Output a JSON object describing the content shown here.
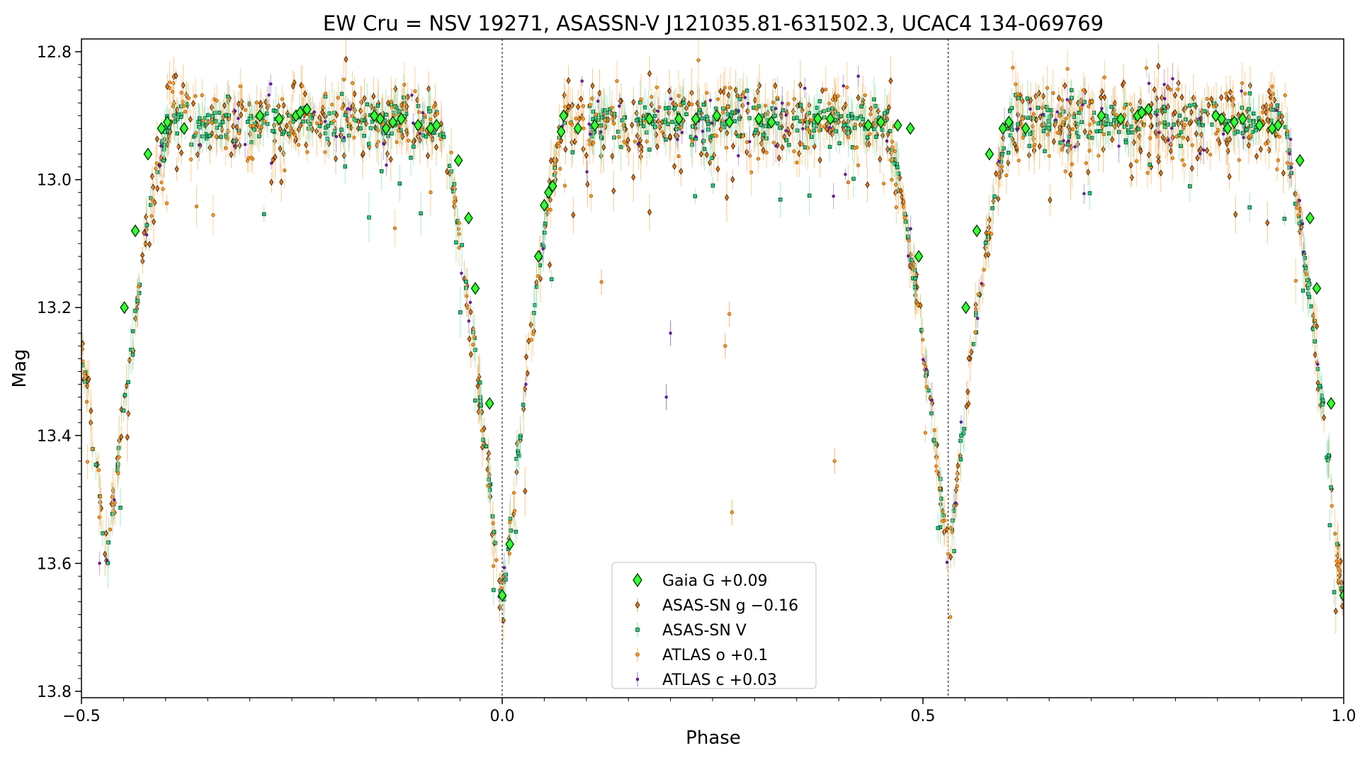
{
  "chart_data": {
    "type": "scatter",
    "title": "EW Cru = NSV 19271, ASASSN-V J121035.81-631502.3, UCAC4 134-069769",
    "xlabel": "Phase",
    "ylabel": "Mag",
    "xlim": [
      -0.5,
      1.0
    ],
    "ylim": [
      13.81,
      12.78
    ],
    "y_inverted": true,
    "xticks": [
      {
        "value": -0.5,
        "label": "−0.5"
      },
      {
        "value": 0.0,
        "label": "0.0"
      },
      {
        "value": 0.5,
        "label": "0.5"
      },
      {
        "value": 1.0,
        "label": "1.0"
      }
    ],
    "yticks": [
      {
        "value": 12.8,
        "label": "12.8"
      },
      {
        "value": 13.0,
        "label": "13.0"
      },
      {
        "value": 13.2,
        "label": "13.2"
      },
      {
        "value": 13.4,
        "label": "13.4"
      },
      {
        "value": 13.6,
        "label": "13.6"
      },
      {
        "value": 13.8,
        "label": "13.8"
      }
    ],
    "vlines": [
      0.0,
      0.53
    ],
    "legend_position": "lower-center",
    "light_curve_model": {
      "primary_min_phase": 0.0,
      "primary_min_mag": 13.68,
      "secondary_min_phase": 0.53,
      "secondary_min_mag": 13.6,
      "max_mag": 12.91,
      "eclipse_half_width": 0.075
    },
    "series": [
      {
        "name": "Gaia G +0.09",
        "marker": "diamond",
        "color": "#33ff33",
        "edge": "#003300",
        "points": [
          [
            -0.449,
            13.2
          ],
          [
            -0.436,
            13.08
          ],
          [
            -0.421,
            12.96
          ],
          [
            -0.405,
            12.92
          ],
          [
            -0.398,
            12.91
          ],
          [
            -0.378,
            12.92
          ],
          [
            -0.288,
            12.9
          ],
          [
            -0.265,
            12.905
          ],
          [
            -0.245,
            12.9
          ],
          [
            -0.24,
            12.895
          ],
          [
            -0.232,
            12.89
          ],
          [
            -0.152,
            12.9
          ],
          [
            -0.145,
            12.905
          ],
          [
            -0.138,
            12.92
          ],
          [
            -0.13,
            12.91
          ],
          [
            -0.12,
            12.905
          ],
          [
            -0.1,
            12.915
          ],
          [
            -0.085,
            12.92
          ],
          [
            -0.078,
            12.915
          ],
          [
            -0.052,
            12.97
          ],
          [
            -0.04,
            13.06
          ],
          [
            -0.032,
            13.17
          ],
          [
            -0.015,
            13.35
          ],
          [
            0.0,
            13.65
          ],
          [
            0.009,
            13.57
          ],
          [
            0.043,
            13.12
          ],
          [
            0.05,
            13.04
          ],
          [
            0.055,
            13.02
          ],
          [
            0.06,
            13.01
          ],
          [
            0.07,
            12.925
          ],
          [
            0.073,
            12.9
          ],
          [
            0.09,
            12.92
          ],
          [
            0.11,
            12.915
          ],
          [
            0.175,
            12.905
          ],
          [
            0.21,
            12.905
          ],
          [
            0.23,
            12.905
          ],
          [
            0.255,
            12.9
          ],
          [
            0.27,
            12.91
          ],
          [
            0.305,
            12.905
          ],
          [
            0.32,
            12.91
          ],
          [
            0.375,
            12.905
          ],
          [
            0.39,
            12.905
          ],
          [
            0.435,
            12.915
          ],
          [
            0.45,
            12.91
          ],
          [
            0.47,
            12.915
          ],
          [
            0.485,
            12.92
          ],
          [
            0.495,
            13.12
          ],
          [
            0.551,
            13.2
          ],
          [
            0.564,
            13.08
          ],
          [
            0.579,
            12.96
          ],
          [
            0.595,
            12.92
          ],
          [
            0.602,
            12.91
          ],
          [
            0.622,
            12.92
          ],
          [
            0.712,
            12.9
          ],
          [
            0.735,
            12.905
          ],
          [
            0.755,
            12.9
          ],
          [
            0.76,
            12.895
          ],
          [
            0.768,
            12.89
          ],
          [
            0.848,
            12.9
          ],
          [
            0.855,
            12.905
          ],
          [
            0.862,
            12.92
          ],
          [
            0.87,
            12.91
          ],
          [
            0.88,
            12.905
          ],
          [
            0.9,
            12.915
          ],
          [
            0.915,
            12.92
          ],
          [
            0.922,
            12.915
          ],
          [
            0.948,
            12.97
          ],
          [
            0.96,
            13.06
          ],
          [
            0.968,
            13.17
          ],
          [
            0.985,
            13.35
          ],
          [
            1.0,
            13.65
          ]
        ]
      },
      {
        "name": "ASAS-SN g −0.16",
        "marker": "diamond-small",
        "color": "#e07a18",
        "edge": "#3a1a00",
        "errcolor": "#f5b56a",
        "count": 900,
        "scatter": 0.03
      },
      {
        "name": "ASAS-SN V",
        "marker": "square",
        "color": "#22cc77",
        "edge": "#00331a",
        "errcolor": "#8fe3b8",
        "count": 700,
        "scatter": 0.018
      },
      {
        "name": "ATLAS o +0.1",
        "marker": "circle",
        "color": "#ff9a1a",
        "edge": "#7a3b00",
        "errcolor": "#ffc27a",
        "count": 380,
        "scatter": 0.035,
        "outliers": [
          [
            0.118,
            13.16
          ],
          [
            0.265,
            13.26
          ],
          [
            0.27,
            13.21
          ],
          [
            0.273,
            13.52
          ],
          [
            0.395,
            13.44
          ]
        ]
      },
      {
        "name": "ATLAS c +0.03",
        "marker": "dot",
        "color": "#6a1fa8",
        "edge": "#2a004a",
        "errcolor": "#a98ad6",
        "count": 120,
        "scatter": 0.03,
        "outliers": [
          [
            0.2,
            13.24
          ],
          [
            0.195,
            13.34
          ]
        ]
      }
    ]
  }
}
